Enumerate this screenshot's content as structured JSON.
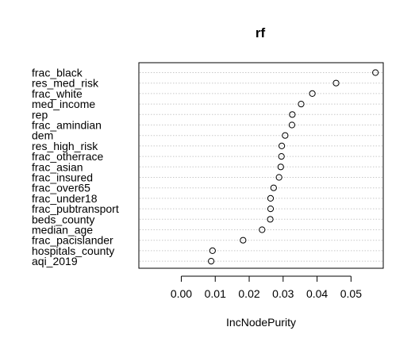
{
  "chart_data": {
    "type": "scatter",
    "title": "rf",
    "xlabel": "IncNodePurity",
    "ylabel": "",
    "xlim": [
      -0.0125,
      0.0595
    ],
    "xticks": [
      0.0,
      0.01,
      0.02,
      0.03,
      0.04,
      0.05
    ],
    "xtick_labels": [
      "0.00",
      "0.01",
      "0.02",
      "0.03",
      "0.04",
      "0.05"
    ],
    "grid": "dotted horizontal lines per variable",
    "marker": "open circle",
    "variables": [
      {
        "name": "frac_black",
        "value": 0.0572
      },
      {
        "name": "res_med_risk",
        "value": 0.0456
      },
      {
        "name": "frac_white",
        "value": 0.0386
      },
      {
        "name": "med_income",
        "value": 0.0353
      },
      {
        "name": "rep",
        "value": 0.0327
      },
      {
        "name": "frac_amindian",
        "value": 0.0326
      },
      {
        "name": "dem",
        "value": 0.0306
      },
      {
        "name": "res_high_risk",
        "value": 0.0296
      },
      {
        "name": "frac_otherrace",
        "value": 0.0295
      },
      {
        "name": "frac_asian",
        "value": 0.0293
      },
      {
        "name": "frac_insured",
        "value": 0.0288
      },
      {
        "name": "frac_over65",
        "value": 0.0272
      },
      {
        "name": "frac_under18",
        "value": 0.0263
      },
      {
        "name": "frac_pubtransport",
        "value": 0.0263
      },
      {
        "name": "beds_county",
        "value": 0.0262
      },
      {
        "name": "median_age",
        "value": 0.0238
      },
      {
        "name": "frac_pacislander",
        "value": 0.0182
      },
      {
        "name": "hospitals_county",
        "value": 0.0092
      },
      {
        "name": "aqi_2019",
        "value": 0.0088
      }
    ]
  }
}
